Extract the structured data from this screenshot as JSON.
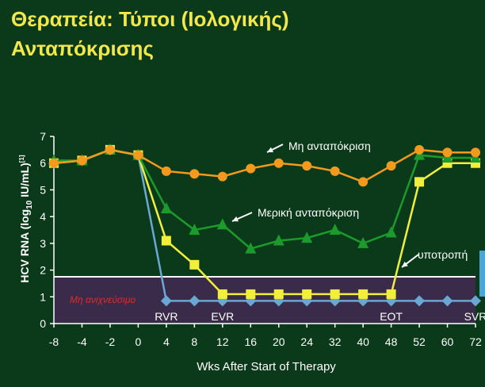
{
  "slide": {
    "title_line1": "Θεραπεία: Τύποι (Ιολογικής)",
    "title_line2": "Ανταπόκρισης"
  },
  "colors": {
    "background": "#0b3a1a",
    "title": "#f2e84a",
    "undetectable_band": "#3b2b4a",
    "no_response": "#f39a1e",
    "partial_response": "#1c9a2c",
    "relapse": "#f2ee3c",
    "rvr_svr": "#6aa7d4",
    "limit_label": "#e02a2a",
    "threshold_line": "#ffffff",
    "right_bar": "#4aa6d8"
  },
  "chart_data": {
    "type": "line",
    "x": [
      "-8",
      "-4",
      "-2",
      "0",
      "4",
      "8",
      "12",
      "16",
      "20",
      "24",
      "32",
      "40",
      "48",
      "52",
      "60",
      "72"
    ],
    "ylim": [
      0,
      7
    ],
    "yticks": [
      0,
      1,
      2,
      3,
      4,
      5,
      6,
      7
    ],
    "xlabel": "Wks After Start of Therapy",
    "ylabel": {
      "prefix": "HCV RNA (log",
      "subscript": "10",
      "suffix": " IU/mL)",
      "superscript": "[1]"
    },
    "threshold": 1.75,
    "undetectable_label": "Μη ανιχνεύσιμο",
    "series": [
      {
        "name": "Μη ανταπόκριση",
        "marker": "circle",
        "color": "#f39a1e",
        "values": [
          6.0,
          6.1,
          6.5,
          6.3,
          5.7,
          5.6,
          5.5,
          5.8,
          6.0,
          5.9,
          5.7,
          5.3,
          5.9,
          6.5,
          6.4,
          6.4
        ]
      },
      {
        "name": "Μερική ανταπόκριση",
        "marker": "triangle",
        "color": "#1c9a2c",
        "values": [
          6.1,
          6.1,
          6.5,
          6.3,
          4.3,
          3.5,
          3.7,
          2.8,
          3.1,
          3.2,
          3.5,
          3.0,
          3.4,
          6.3,
          6.2,
          6.2
        ]
      },
      {
        "name": "υποτροπή",
        "marker": "square",
        "color": "#f2ee3c",
        "values": [
          6.0,
          6.1,
          6.5,
          6.3,
          3.1,
          2.2,
          1.1,
          1.1,
          1.1,
          1.1,
          1.1,
          1.1,
          1.1,
          5.3,
          6.0,
          6.0
        ]
      },
      {
        "marker": "diamond",
        "color": "#6aa7d4",
        "values": [
          6.0,
          6.1,
          6.5,
          6.3,
          0.85,
          0.85,
          0.85,
          0.85,
          0.85,
          0.85,
          0.85,
          0.85,
          0.85,
          0.85,
          0.85,
          0.85
        ]
      }
    ],
    "point_labels": [
      {
        "text": "RVR",
        "x": "4"
      },
      {
        "text": "EVR",
        "x": "12"
      },
      {
        "text": "EOT",
        "x": "48"
      },
      {
        "text": "SVR",
        "x": "72"
      }
    ]
  }
}
